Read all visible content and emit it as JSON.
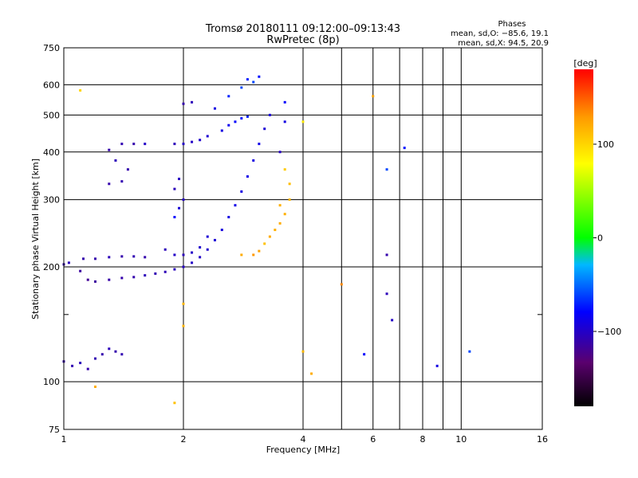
{
  "chart_data": {
    "type": "scatter",
    "title": "Tromsø 20180111 09:12:00–09:13:43",
    "subtitle": "RwPretec (8p)",
    "xlabel": "Frequency [MHz]",
    "ylabel": "Stationary phase Virtual Height [km]",
    "x_scale": "log",
    "y_scale": "log",
    "xlim": [
      1,
      16
    ],
    "ylim": [
      75,
      750
    ],
    "x_ticks": [
      1,
      2,
      4,
      6,
      8,
      10,
      16
    ],
    "x_tick_labels": [
      "1",
      "2",
      "4",
      "6",
      "8",
      "10",
      "16"
    ],
    "x_minor_ticks": [
      5,
      7,
      9
    ],
    "y_ticks": [
      75,
      100,
      200,
      300,
      400,
      500,
      600,
      750
    ],
    "y_tick_labels": [
      "75",
      "100",
      "200",
      "300",
      "400",
      "500",
      "600",
      "750"
    ],
    "y_minor_ticks": [
      150
    ],
    "grid": true,
    "phases": {
      "heading": "Phases",
      "line1": "mean, sd,O: −85.6, 19.1",
      "line2": "mean, sd,X:  94.5, 20.9"
    },
    "colorbar": {
      "label": "[deg]",
      "range": [
        -180,
        180
      ],
      "ticks": [
        100,
        0,
        -100
      ],
      "tick_labels": [
        "100",
        "0",
        "−100"
      ]
    },
    "series": [
      {
        "points": [
          [
            1.0,
            203,
            -110
          ],
          [
            1.03,
            205,
            -105
          ],
          [
            1.12,
            210,
            -110
          ],
          [
            1.2,
            210,
            -110
          ],
          [
            1.3,
            212,
            -105
          ],
          [
            1.4,
            213,
            -110
          ],
          [
            1.5,
            213,
            -108
          ],
          [
            1.6,
            212,
            -110
          ],
          [
            1.1,
            195,
            -115
          ],
          [
            1.15,
            185,
            -118
          ],
          [
            1.2,
            183,
            -115
          ],
          [
            1.3,
            185,
            -112
          ],
          [
            1.4,
            187,
            -110
          ],
          [
            1.5,
            188,
            -110
          ],
          [
            1.6,
            190,
            -105
          ],
          [
            1.7,
            192,
            -108
          ],
          [
            1.8,
            194,
            -106
          ],
          [
            1.9,
            197,
            -104
          ],
          [
            2.0,
            200,
            -102
          ],
          [
            2.1,
            205,
            -100
          ],
          [
            2.2,
            212,
            -100
          ],
          [
            2.3,
            222,
            -98
          ],
          [
            2.4,
            235,
            -95
          ],
          [
            2.5,
            250,
            -92
          ],
          [
            2.6,
            270,
            -90
          ],
          [
            2.7,
            290,
            -88
          ],
          [
            2.8,
            315,
            -90
          ],
          [
            2.9,
            345,
            -88
          ],
          [
            3.0,
            380,
            -90
          ],
          [
            3.1,
            420,
            -88
          ],
          [
            3.2,
            460,
            -95
          ],
          [
            3.3,
            500,
            -92
          ],
          [
            1.8,
            222,
            -105
          ],
          [
            1.9,
            215,
            -100
          ],
          [
            2.0,
            215,
            -105
          ],
          [
            2.1,
            218,
            -100
          ],
          [
            2.2,
            225,
            -98
          ],
          [
            2.3,
            240,
            -95
          ],
          [
            1.3,
            405,
            -110
          ],
          [
            1.35,
            380,
            -105
          ],
          [
            1.4,
            420,
            -108
          ],
          [
            1.5,
            420,
            -110
          ],
          [
            1.6,
            420,
            -100
          ],
          [
            1.45,
            360,
            -110
          ],
          [
            1.4,
            335,
            -108
          ],
          [
            1.3,
            330,
            -110
          ],
          [
            1.9,
            420,
            -105
          ],
          [
            2.0,
            420,
            -100
          ],
          [
            2.1,
            425,
            -100
          ],
          [
            2.2,
            430,
            -98
          ],
          [
            2.3,
            440,
            -96
          ],
          [
            2.5,
            455,
            -90
          ],
          [
            2.6,
            470,
            -85
          ],
          [
            2.7,
            480,
            -80
          ],
          [
            2.8,
            490,
            -75
          ],
          [
            2.9,
            495,
            -70
          ],
          [
            2.0,
            535,
            -110
          ],
          [
            2.1,
            540,
            -105
          ],
          [
            2.4,
            520,
            -90
          ],
          [
            2.6,
            560,
            -70
          ],
          [
            2.8,
            590,
            -60
          ],
          [
            3.0,
            610,
            -60
          ],
          [
            3.1,
            630,
            -75
          ],
          [
            2.9,
            620,
            -72
          ],
          [
            1.9,
            320,
            -105
          ],
          [
            1.95,
            340,
            -102
          ],
          [
            2.0,
            300,
            -100
          ],
          [
            1.95,
            285,
            -95
          ],
          [
            1.9,
            270,
            -80
          ],
          [
            2.8,
            215,
            120
          ],
          [
            3.0,
            215,
            130
          ],
          [
            3.1,
            220,
            125
          ],
          [
            3.2,
            230,
            110
          ],
          [
            3.3,
            240,
            120
          ],
          [
            3.4,
            250,
            118
          ],
          [
            3.5,
            260,
            120
          ],
          [
            3.6,
            275,
            118
          ],
          [
            3.7,
            300,
            115
          ],
          [
            3.7,
            330,
            112
          ],
          [
            3.6,
            360,
            105
          ],
          [
            3.5,
            290,
            118
          ],
          [
            3.5,
            400,
            -100
          ],
          [
            3.6,
            480,
            -90
          ],
          [
            3.6,
            540,
            -80
          ],
          [
            4.0,
            480,
            90
          ],
          [
            1.1,
            580,
            100
          ],
          [
            1.0,
            113,
            -110
          ],
          [
            1.05,
            110,
            -108
          ],
          [
            1.1,
            112,
            -105
          ],
          [
            1.15,
            108,
            -110
          ],
          [
            1.2,
            115,
            -108
          ],
          [
            1.25,
            118,
            -110
          ],
          [
            1.3,
            122,
            -105
          ],
          [
            1.35,
            120,
            -110
          ],
          [
            1.4,
            118,
            -108
          ],
          [
            5.0,
            180,
            135
          ],
          [
            6.0,
            560,
            125
          ],
          [
            6.5,
            360,
            -60
          ],
          [
            6.5,
            215,
            -110
          ],
          [
            6.5,
            170,
            -105
          ],
          [
            6.7,
            145,
            -100
          ],
          [
            7.2,
            410,
            -75
          ],
          [
            5.7,
            118,
            -80
          ],
          [
            8.7,
            110,
            -90
          ],
          [
            10.5,
            120,
            -60
          ],
          [
            4.2,
            105,
            120
          ],
          [
            4.0,
            120,
            115
          ],
          [
            1.2,
            97,
            120
          ],
          [
            1.9,
            88,
            110
          ],
          [
            2.0,
            160,
            115
          ],
          [
            2.0,
            140,
            115
          ]
        ]
      }
    ]
  }
}
